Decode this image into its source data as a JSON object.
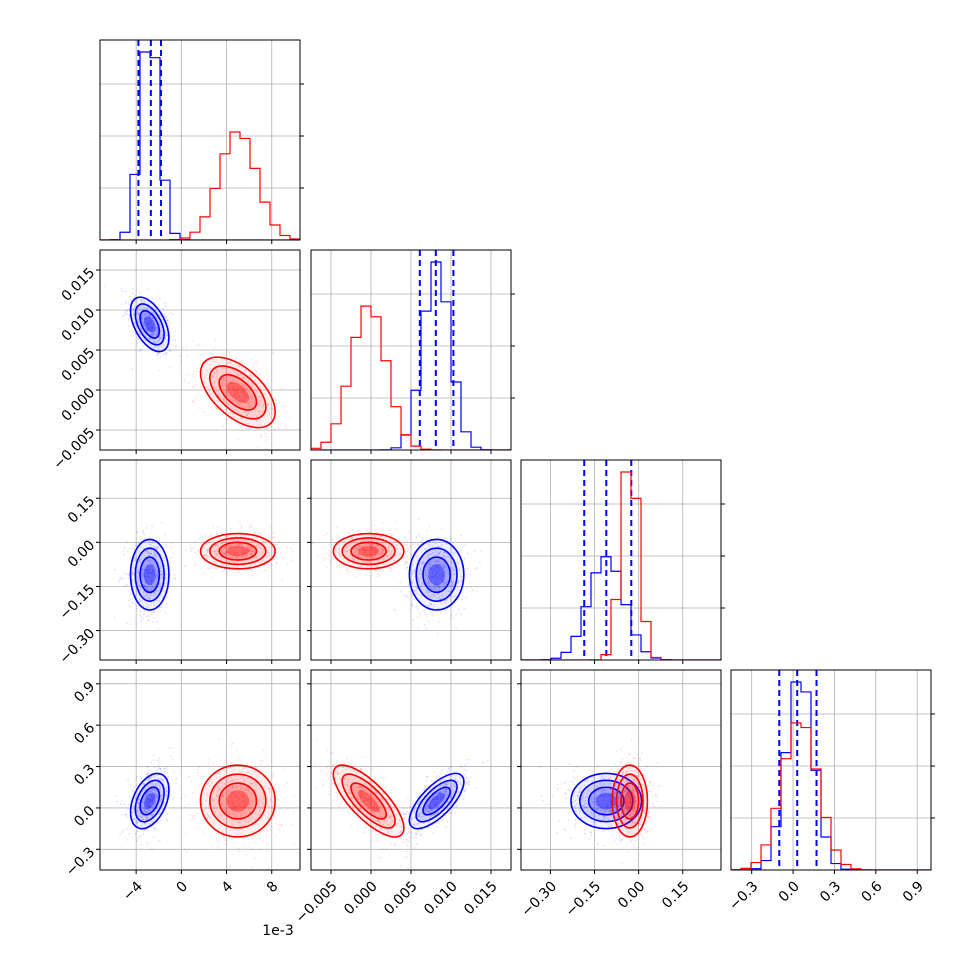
{
  "chart_data": {
    "type": "corner",
    "title": "",
    "x_offset_text": "1e-3",
    "parameters": [
      {
        "ticks": [
          -4,
          0,
          4,
          8
        ],
        "tick_labels": [
          "−4",
          "0",
          "4",
          "8"
        ],
        "range": [
          -7.2,
          10.5
        ]
      },
      {
        "ticks": [
          -0.005,
          0.0,
          0.005,
          0.01,
          0.015
        ],
        "tick_labels": [
          "−0.005",
          "0.000",
          "0.005",
          "0.010",
          "0.015"
        ],
        "range": [
          -0.0075,
          0.0175
        ]
      },
      {
        "ticks": [
          -0.3,
          -0.15,
          0.0,
          0.15
        ],
        "tick_labels": [
          "−0.30",
          "−0.15",
          "0.00",
          "0.15"
        ],
        "range": [
          -0.4,
          0.28
        ]
      },
      {
        "ticks": [
          -0.3,
          0.0,
          0.3,
          0.6,
          0.9
        ],
        "tick_labels": [
          "−0.3",
          "0.0",
          "0.3",
          "0.6",
          "0.9"
        ],
        "range": [
          -0.45,
          1.0
        ]
      }
    ],
    "series": [
      {
        "color": "#0000ff",
        "means": [
          -2.8,
          0.0082,
          -0.11,
          0.05
        ],
        "sds": [
          0.85,
          0.0017,
          0.06,
          0.1
        ],
        "quantiles": [
          [
            -3.8,
            -2.7,
            -1.8
          ],
          [
            0.0061,
            0.0081,
            0.0103
          ],
          [
            -0.185,
            -0.11,
            -0.025
          ],
          [
            -0.1,
            0.03,
            0.17
          ]
        ],
        "corr": [
          [
            0,
            1,
            -0.5
          ],
          [
            0,
            2,
            0.0
          ],
          [
            0,
            3,
            0.4
          ],
          [
            1,
            2,
            0.0
          ],
          [
            1,
            3,
            0.7
          ],
          [
            2,
            3,
            0.0
          ]
        ]
      },
      {
        "color": "#ff0000",
        "means": [
          5.0,
          -0.0003,
          -0.03,
          0.05
        ],
        "sds": [
          1.65,
          0.0022,
          0.03,
          0.13
        ],
        "quantiles": [],
        "corr": [
          [
            0,
            1,
            -0.55
          ],
          [
            0,
            2,
            0.0
          ],
          [
            0,
            3,
            0.0
          ],
          [
            1,
            2,
            0.0
          ],
          [
            1,
            3,
            -0.75
          ],
          [
            2,
            3,
            0.0
          ]
        ]
      }
    ],
    "grid": true
  }
}
